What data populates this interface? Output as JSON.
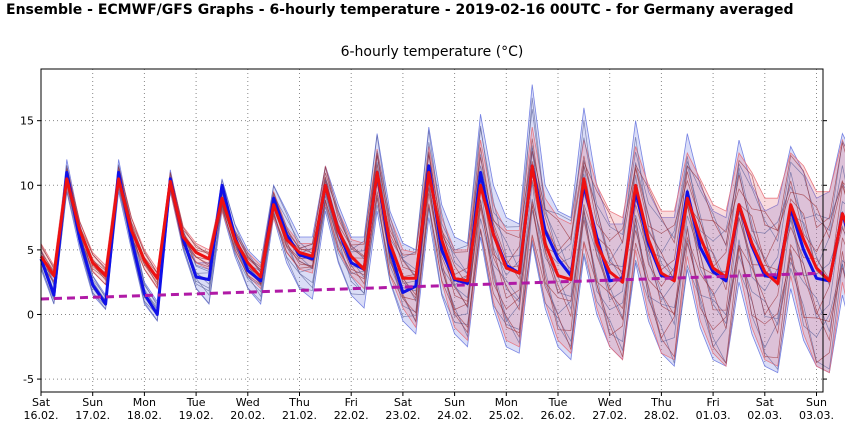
{
  "header": {
    "title": "Ensemble - ECMWF/GFS Graphs - 6-hourly temperature - 2019-02-16 00UTC - for Germany averaged"
  },
  "chart_data": {
    "type": "line",
    "title": "6-hourly temperature (°C)",
    "xlabel": "",
    "ylabel": "",
    "ylim": [
      -6,
      19
    ],
    "yticks": [
      -5,
      0,
      5,
      10,
      15
    ],
    "grid": true,
    "legend": "none",
    "x_start": "Sat 16.02. 00UTC",
    "x_step_hours": 6,
    "x_ticks": [
      {
        "day": "Sat",
        "date": "16.02."
      },
      {
        "day": "Sun",
        "date": "17.02."
      },
      {
        "day": "Mon",
        "date": "18.02."
      },
      {
        "day": "Tue",
        "date": "19.02."
      },
      {
        "day": "Wed",
        "date": "20.02."
      },
      {
        "day": "Thu",
        "date": "21.02."
      },
      {
        "day": "Fri",
        "date": "22.02."
      },
      {
        "day": "Sat",
        "date": "23.02."
      },
      {
        "day": "Sun",
        "date": "24.02."
      },
      {
        "day": "Mon",
        "date": "25.02."
      },
      {
        "day": "Tue",
        "date": "26.02."
      },
      {
        "day": "Wed",
        "date": "27.02."
      },
      {
        "day": "Thu",
        "date": "28.02."
      },
      {
        "day": "Fri",
        "date": "01.03."
      },
      {
        "day": "Sat",
        "date": "02.03."
      },
      {
        "day": "Sun",
        "date": "03.03."
      }
    ],
    "series": [
      {
        "color": "#1010e8",
        "width": 3,
        "values": [
          4.3,
          1.5,
          11.0,
          5.8,
          2.3,
          0.8,
          11.0,
          5.8,
          1.6,
          0.0,
          10.5,
          5.8,
          2.9,
          2.7,
          10.0,
          6.0,
          3.4,
          2.6,
          9.0,
          6.2,
          4.6,
          4.3,
          10.0,
          6.5,
          4.0,
          3.5,
          11.0,
          5.0,
          1.7,
          2.2,
          11.5,
          5.0,
          2.7,
          2.4,
          11.0,
          6.2,
          3.8,
          3.2,
          11.5,
          6.5,
          4.3,
          3.0,
          10.0,
          6.0,
          2.6,
          2.8,
          9.5,
          5.5,
          3.0,
          2.8,
          9.5,
          5.2,
          3.3,
          2.6,
          8.5,
          5.3,
          3.0,
          2.8,
          8.2,
          5.0,
          2.8,
          2.6,
          7.8,
          4.5,
          2.5
        ]
      },
      {
        "color": "#ee1111",
        "width": 3,
        "values": [
          4.5,
          3.0,
          10.5,
          6.5,
          4.0,
          3.0,
          10.5,
          6.5,
          4.2,
          2.8,
          10.3,
          6.0,
          4.8,
          4.3,
          9.0,
          5.8,
          4.0,
          2.9,
          8.5,
          5.8,
          4.8,
          4.5,
          10.0,
          6.5,
          4.5,
          3.5,
          11.0,
          5.5,
          2.8,
          2.8,
          11.0,
          5.8,
          2.8,
          2.6,
          10.0,
          6.2,
          3.6,
          3.2,
          11.5,
          5.5,
          3.0,
          2.7,
          10.5,
          5.5,
          3.3,
          2.5,
          10.0,
          5.8,
          3.2,
          2.6,
          9.0,
          6.0,
          3.6,
          2.9,
          8.5,
          5.5,
          3.3,
          2.4,
          8.5,
          5.8,
          3.6,
          2.6,
          7.8,
          5.3,
          2.7
        ]
      },
      {
        "color": "#b01aa6",
        "width": 3,
        "dashed": true,
        "values": [
          1.2,
          3.2
        ]
      }
    ],
    "envelopes": [
      {
        "color": "#6a78e0",
        "upper": [
          5.0,
          2.5,
          12.0,
          7.0,
          3.0,
          1.5,
          12.0,
          7.0,
          2.5,
          1.0,
          11.2,
          6.5,
          4.0,
          4.0,
          10.5,
          7.0,
          5.0,
          4.0,
          10.0,
          8.0,
          6.0,
          6.0,
          11.5,
          8.5,
          6.0,
          6.0,
          14.0,
          8.0,
          5.5,
          5.0,
          14.5,
          8.5,
          6.0,
          5.5,
          15.5,
          10.0,
          7.5,
          7.0,
          17.8,
          10.0,
          8.0,
          7.5,
          16.0,
          10.0,
          7.0,
          7.0,
          15.0,
          9.5,
          7.5,
          7.5,
          14.0,
          10.0,
          8.0,
          7.5,
          13.5,
          10.0,
          8.0,
          8.5,
          13.0,
          11.0,
          9.0,
          9.5,
          14.0,
          12.0,
          11.0
        ],
        "lower": [
          3.5,
          0.8,
          9.5,
          5.0,
          1.5,
          0.4,
          9.5,
          5.0,
          0.8,
          -0.5,
          9.5,
          5.0,
          2.0,
          0.8,
          8.0,
          4.5,
          2.0,
          0.8,
          7.5,
          4.0,
          2.0,
          1.2,
          8.0,
          4.0,
          1.5,
          0.5,
          8.0,
          2.5,
          -0.5,
          -1.5,
          7.5,
          1.5,
          -1.5,
          -2.5,
          6.0,
          0.5,
          -2.5,
          -3.0,
          5.5,
          0.5,
          -2.5,
          -3.5,
          4.5,
          0.0,
          -2.5,
          -3.5,
          4.0,
          -0.5,
          -3.0,
          -4.0,
          3.5,
          -1.0,
          -3.5,
          -4.0,
          2.5,
          -1.5,
          -4.0,
          -4.5,
          2.0,
          -2.0,
          -4.0,
          -4.5,
          1.5,
          -2.5,
          -5.0
        ]
      },
      {
        "color": "#e8707a",
        "upper": [
          5.5,
          3.8,
          11.5,
          7.2,
          4.8,
          3.8,
          11.5,
          7.5,
          5.0,
          3.5,
          11.0,
          6.8,
          5.5,
          5.0,
          9.5,
          6.5,
          4.8,
          3.8,
          9.5,
          6.8,
          5.5,
          5.5,
          11.5,
          8.0,
          5.8,
          5.5,
          12.8,
          7.5,
          5.0,
          4.8,
          13.0,
          7.5,
          5.0,
          5.0,
          13.5,
          8.5,
          6.5,
          6.5,
          14.5,
          9.0,
          7.5,
          7.0,
          13.5,
          10.0,
          8.0,
          7.5,
          13.0,
          10.0,
          8.0,
          8.0,
          12.5,
          10.5,
          8.5,
          8.0,
          12.5,
          11.0,
          9.0,
          9.0,
          12.5,
          11.5,
          9.5,
          9.5,
          13.5,
          11.0,
          9.0
        ],
        "lower": [
          3.8,
          2.5,
          9.8,
          5.8,
          3.3,
          2.3,
          9.8,
          5.8,
          3.5,
          2.0,
          9.5,
          5.2,
          4.0,
          3.5,
          8.0,
          5.0,
          3.0,
          2.0,
          7.5,
          4.8,
          3.5,
          3.2,
          8.5,
          5.0,
          3.0,
          2.0,
          9.0,
          3.0,
          0.5,
          -1.0,
          8.5,
          2.5,
          -1.0,
          -2.0,
          6.5,
          1.0,
          -2.0,
          -2.5,
          6.0,
          1.0,
          -2.0,
          -3.0,
          5.5,
          0.5,
          -2.5,
          -3.5,
          5.0,
          0.0,
          -3.0,
          -3.5,
          4.5,
          -0.5,
          -3.0,
          -4.0,
          3.5,
          -1.0,
          -3.5,
          -4.0,
          3.0,
          -1.5,
          -4.0,
          -4.5,
          2.5,
          -2.0,
          -4.5
        ]
      }
    ]
  }
}
